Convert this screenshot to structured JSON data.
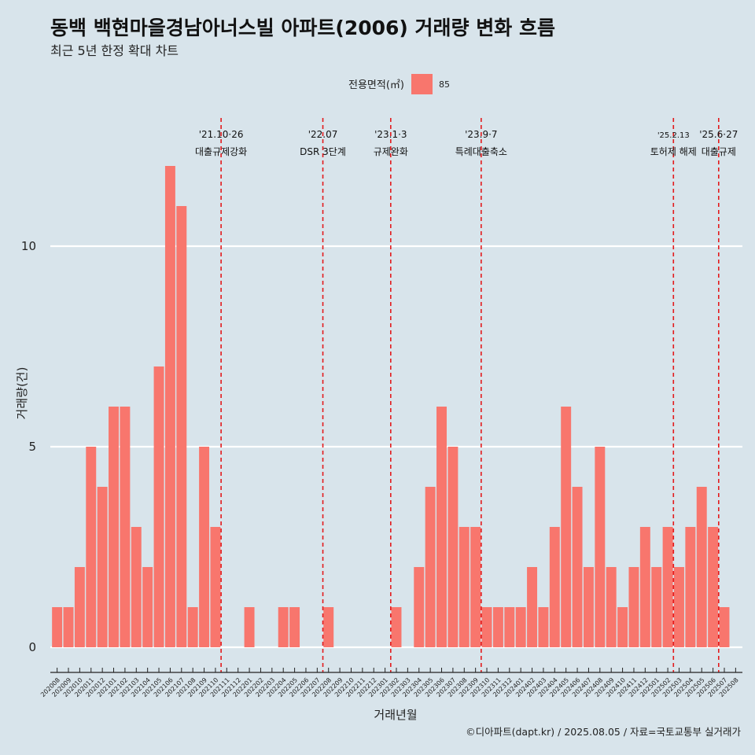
{
  "chart_data": {
    "type": "bar",
    "title": "동백 백현마을경남아너스빌 아파트(2006) 거래량 변화 흐름",
    "subtitle": "최근 5년 한정 확대 차트",
    "xlabel": "거래년월",
    "ylabel": "거래량(건)",
    "caption": "©디아파트(dapt.kr) / 2025.08.05 / 자료=국토교통부 실거래가",
    "legend": {
      "title": "전용면적(㎡)",
      "position": "top",
      "items": [
        {
          "label": "85",
          "color": "#f8766d"
        }
      ]
    },
    "ylim": [
      0,
      12.6
    ],
    "yticks": [
      0,
      5,
      10
    ],
    "grid": true,
    "bar_color": "#f8766d",
    "categories": [
      "202008",
      "202009",
      "202010",
      "202011",
      "202012",
      "202101",
      "202102",
      "202103",
      "202104",
      "202105",
      "202106",
      "202107",
      "202108",
      "202109",
      "202110",
      "202111",
      "202112",
      "202201",
      "202202",
      "202203",
      "202204",
      "202205",
      "202206",
      "202207",
      "202208",
      "202209",
      "202210",
      "202211",
      "202212",
      "202301",
      "202302",
      "202303",
      "202304",
      "202305",
      "202306",
      "202307",
      "202308",
      "202309",
      "202310",
      "202311",
      "202312",
      "202401",
      "202402",
      "202403",
      "202404",
      "202405",
      "202406",
      "202407",
      "202408",
      "202409",
      "202410",
      "202411",
      "202412",
      "202501",
      "202502",
      "202503",
      "202504",
      "202505",
      "202506",
      "202507",
      "202508"
    ],
    "values": [
      1,
      1,
      2,
      5,
      4,
      6,
      6,
      3,
      2,
      7,
      12,
      11,
      1,
      5,
      3,
      0,
      0,
      1,
      0,
      0,
      1,
      1,
      0,
      0,
      1,
      0,
      0,
      0,
      0,
      0,
      1,
      0,
      2,
      4,
      6,
      5,
      3,
      3,
      1,
      1,
      1,
      1,
      2,
      1,
      3,
      6,
      4,
      2,
      5,
      2,
      1,
      2,
      3,
      2,
      3,
      2,
      3,
      4,
      3,
      1,
      0
    ],
    "events": [
      {
        "category": "202110",
        "date": "'21.10·26",
        "label": "대출규제강화",
        "color": "#e31a1c"
      },
      {
        "category": "202207",
        "date": "'22.07",
        "label": "DSR 3단계",
        "color": "#e31a1c"
      },
      {
        "category": "202301",
        "date": "'23.1·3",
        "label": "규제완화",
        "color": "#e31a1c"
      },
      {
        "category": "202309",
        "date": "'23.9·7",
        "label": "특례대출축소",
        "color": "#e31a1c"
      },
      {
        "category": "202502",
        "date": "'25.2.13",
        "label": "토허제 해제",
        "color": "#e31a1c",
        "small": true
      },
      {
        "category": "202506",
        "date": "'25.6·27",
        "label": "대출규제",
        "color": "#e31a1c"
      }
    ]
  }
}
